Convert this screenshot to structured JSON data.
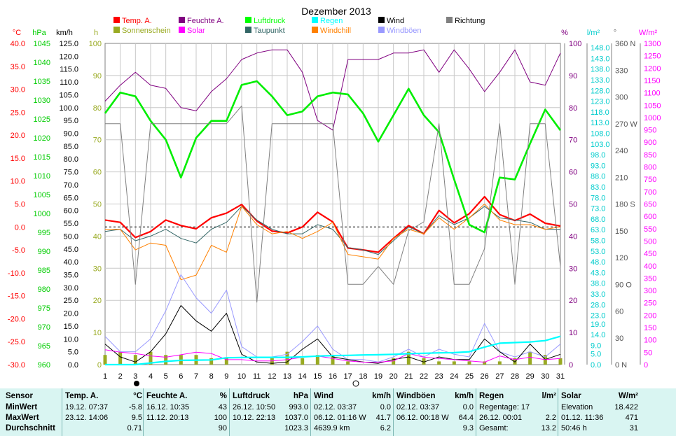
{
  "chart_data": {
    "type": "line",
    "title": "Dezember 2013",
    "x": [
      1,
      2,
      3,
      4,
      5,
      6,
      7,
      8,
      9,
      10,
      11,
      12,
      13,
      14,
      15,
      16,
      17,
      18,
      19,
      20,
      21,
      22,
      23,
      24,
      25,
      26,
      27,
      28,
      29,
      30,
      31
    ],
    "axes": {
      "temp": {
        "unit": "°C",
        "range": [
          -30,
          40
        ],
        "ticks": [
          "40.0",
          "35.0",
          "30.0",
          "25.0",
          "20.0",
          "15.0",
          "10.0",
          "5.0",
          "0.0",
          "-5.0",
          "-10.0",
          "-15.0",
          "-20.0",
          "-25.0",
          "-30.0"
        ],
        "color": "#ff0000"
      },
      "pressure": {
        "unit": "hPa",
        "range": [
          960,
          1045
        ],
        "ticks": [
          "1045",
          "1040",
          "1035",
          "1030",
          "1025",
          "1020",
          "1015",
          "1010",
          "1005",
          "1000",
          "995",
          "990",
          "985",
          "980",
          "975",
          "970",
          "965",
          "960"
        ],
        "color": "#00cc00"
      },
      "wind": {
        "unit": "km/h",
        "range": [
          0,
          125
        ],
        "ticks": [
          "125.0",
          "120.0",
          "115.0",
          "110.0",
          "105.0",
          "100.0",
          "95.0",
          "90.0",
          "85.0",
          "80.0",
          "75.0",
          "70.0",
          "65.0",
          "60.0",
          "55.0",
          "50.0",
          "45.0",
          "40.0",
          "35.0",
          "30.0",
          "25.0",
          "20.0",
          "15.0",
          "10.0",
          "5.0",
          "0.0"
        ],
        "color": "#000000"
      },
      "sunshine": {
        "unit": "h",
        "range": [
          0,
          100
        ],
        "ticks": [
          "100",
          "90",
          "80",
          "70",
          "60",
          "50",
          "40",
          "30",
          "20",
          "10",
          "0"
        ],
        "color": "#99aa22"
      },
      "humidity": {
        "unit": "%",
        "range": [
          0,
          100
        ],
        "ticks": [
          "100",
          "90",
          "80",
          "70",
          "60",
          "50",
          "40",
          "30",
          "20",
          "10",
          "0"
        ],
        "color": "#800080"
      },
      "rain": {
        "unit": "l/m²",
        "range": [
          0,
          150
        ],
        "ticks": [
          "148.0",
          "143.0",
          "138.0",
          "133.0",
          "128.0",
          "123.0",
          "118.0",
          "113.0",
          "108.0",
          "103.0",
          "98.0",
          "93.0",
          "88.0",
          "83.0",
          "78.0",
          "73.0",
          "68.0",
          "63.0",
          "58.0",
          "53.0",
          "48.0",
          "43.0",
          "38.0",
          "33.0",
          "28.0",
          "23.0",
          "19.0",
          "14.0",
          "9.0",
          "5.0",
          "0.0"
        ],
        "color": "#00cccc"
      },
      "direction": {
        "unit": "°",
        "range": [
          0,
          360
        ],
        "ticks": [
          "360 N",
          "330",
          "300",
          "270 W",
          "240",
          "210",
          "180 S",
          "150",
          "120",
          "90 O",
          "60",
          "30",
          "0 N"
        ],
        "color": "#555555"
      },
      "solar": {
        "unit": "W/m²",
        "range": [
          0,
          1300
        ],
        "ticks": [
          "1300",
          "1250",
          "1200",
          "1150",
          "1100",
          "1050",
          "1000",
          "950",
          "900",
          "850",
          "800",
          "750",
          "700",
          "650",
          "600",
          "550",
          "500",
          "450",
          "400",
          "350",
          "300",
          "250",
          "200",
          "150",
          "100",
          "50",
          "0"
        ],
        "color": "#ff00ff"
      }
    },
    "legend": [
      {
        "name": "Temp. A.",
        "color": "#ff0000"
      },
      {
        "name": "Feuchte A.",
        "color": "#800080"
      },
      {
        "name": "Luftdruck",
        "color": "#00ff00"
      },
      {
        "name": "Regen",
        "color": "#00ffff"
      },
      {
        "name": "Wind",
        "color": "#000000"
      },
      {
        "name": "Richtung",
        "color": "#808080"
      },
      {
        "name": "Sonnenschein",
        "color": "#99aa22"
      },
      {
        "name": "Solar",
        "color": "#ff00ff"
      },
      {
        "name": "Taupunkt",
        "color": "#336666"
      },
      {
        "name": "Windchill",
        "color": "#ff8000"
      },
      {
        "name": "Windböen",
        "color": "#9999ff"
      }
    ],
    "series": [
      {
        "name": "Temp. A.",
        "axis": "temp",
        "color": "#ff0000",
        "width": 2.2,
        "values": [
          1.5,
          1.0,
          -2.3,
          -1.0,
          1.5,
          0.3,
          -0.4,
          2.0,
          3.0,
          4.9,
          1.3,
          -0.9,
          -1.3,
          0.0,
          3.2,
          1.1,
          -4.6,
          -5.0,
          -5.5,
          -2.5,
          0.3,
          -1.5,
          3.6,
          0.9,
          2.9,
          6.6,
          2.7,
          1.4,
          2.8,
          0.8,
          0.2
        ]
      },
      {
        "name": "Taupunkt",
        "axis": "temp",
        "color": "#336666",
        "width": 1,
        "values": [
          -1.0,
          -0.5,
          -3.0,
          -2.0,
          -0.5,
          -2.5,
          -3.5,
          -0.5,
          1.0,
          4.5,
          1.5,
          -0.5,
          -1.5,
          -1.5,
          0.5,
          -0.5,
          -4.5,
          -5.0,
          -6.0,
          -3.0,
          0.0,
          -1.5,
          2.5,
          0.5,
          2.0,
          4.5,
          2.0,
          1.5,
          1.0,
          -0.5,
          -0.5
        ]
      },
      {
        "name": "Windchill",
        "axis": "temp",
        "color": "#ff8000",
        "width": 1,
        "values": [
          -0.5,
          -0.5,
          -5.0,
          -3.5,
          -4.0,
          -11.5,
          -10.5,
          -4.0,
          -5.5,
          4.5,
          0.5,
          -1.5,
          -1.0,
          -2.5,
          -1.0,
          1.0,
          -6.0,
          -6.5,
          -7.0,
          -2.5,
          -0.5,
          -1.5,
          2.0,
          -0.5,
          2.0,
          5.0,
          1.5,
          0.5,
          0.5,
          -0.5,
          0.0
        ]
      },
      {
        "name": "Feuchte A.",
        "axis": "humidity",
        "color": "#800080",
        "width": 1,
        "values": [
          82,
          87,
          91,
          87,
          86,
          80,
          79,
          85,
          89,
          95,
          97,
          98,
          98,
          91,
          76,
          73,
          95,
          95,
          95,
          97,
          97,
          98,
          91,
          98,
          92,
          85,
          91,
          98,
          88,
          87,
          97
        ]
      },
      {
        "name": "Luftdruck",
        "axis": "pressure",
        "color": "#00ee00",
        "width": 2.6,
        "values": [
          1026.5,
          1032.0,
          1031.0,
          1024.5,
          1019.5,
          1009.5,
          1020.0,
          1024.5,
          1024.5,
          1034.0,
          1035.0,
          1031.0,
          1026.0,
          1027.0,
          1031.0,
          1032.0,
          1031.5,
          1026.5,
          1019.0,
          1026.0,
          1033.0,
          1026.0,
          1021.5,
          1009.0,
          997.0,
          995.0,
          1009.5,
          1009.0,
          1018.5,
          1027.5,
          1022.0
        ]
      },
      {
        "name": "Richtung",
        "axis": "direction",
        "color": "#808080",
        "width": 1,
        "values": [
          270,
          270,
          90,
          270,
          270,
          270,
          270,
          270,
          270,
          290,
          70,
          270,
          270,
          270,
          270,
          270,
          90,
          90,
          110,
          90,
          150,
          160,
          270,
          90,
          90,
          130,
          270,
          90,
          270,
          270,
          110
        ]
      },
      {
        "name": "Windböen",
        "axis": "wind",
        "color": "#9999ff",
        "width": 1,
        "values": [
          11,
          5,
          5,
          10,
          21,
          35,
          26,
          20,
          29,
          7,
          3,
          3,
          4,
          9,
          15,
          6,
          2,
          2,
          1,
          3,
          6,
          3,
          6,
          4,
          3,
          16,
          5,
          3,
          5,
          3,
          8
        ]
      },
      {
        "name": "Wind",
        "axis": "wind",
        "color": "#000000",
        "width": 1,
        "values": [
          8,
          3,
          1,
          5,
          12,
          23,
          17,
          13,
          20,
          4,
          1,
          0.5,
          1,
          6,
          10,
          3,
          2,
          1,
          0.5,
          2,
          3,
          1,
          3,
          2,
          2,
          10,
          5,
          1,
          8,
          2,
          4
        ]
      },
      {
        "name": "Solar",
        "axis": "solar",
        "color": "#ff00ff",
        "width": 1,
        "values": [
          60,
          50,
          45,
          35,
          30,
          40,
          50,
          45,
          20,
          20,
          15,
          15,
          20,
          30,
          35,
          25,
          15,
          10,
          10,
          15,
          45,
          30,
          25,
          20,
          15,
          10,
          35,
          20,
          30,
          20,
          25
        ]
      },
      {
        "name": "Regen",
        "axis": "rain",
        "color": "#00ffff",
        "width": 2.2,
        "values": [
          0,
          0,
          0,
          0.8,
          1.5,
          2.0,
          2.1,
          2.2,
          3.2,
          3.3,
          3.4,
          3.4,
          3.4,
          3.6,
          4.0,
          4.2,
          4.3,
          4.5,
          4.6,
          4.8,
          5.1,
          5.3,
          5.5,
          5.6,
          6.0,
          8.2,
          10.0,
          10.3,
          10.6,
          11.2,
          13.2
        ]
      }
    ],
    "bars": {
      "name": "Sonnenschein",
      "axis": "sunshine",
      "color": "#99aa22",
      "values": [
        3,
        4,
        3,
        4,
        3,
        3,
        3,
        2,
        2,
        0,
        0,
        2,
        4,
        2,
        3,
        3,
        1,
        0,
        0,
        2,
        4,
        2,
        1,
        1,
        1,
        1,
        1,
        2,
        4,
        3,
        2
      ]
    }
  },
  "table": {
    "columns": [
      {
        "label": "Sensor",
        "unit": ""
      },
      {
        "label": "Temp. A.",
        "unit": "°C"
      },
      {
        "label": "Feuchte A.",
        "unit": "%"
      },
      {
        "label": "Luftdruck",
        "unit": "hPa"
      },
      {
        "label": "Wind",
        "unit": "km/h"
      },
      {
        "label": "Windböen",
        "unit": "km/h"
      },
      {
        "label": "Regen",
        "unit": "l/m²"
      },
      {
        "label": "Solar",
        "unit": "W/m²"
      }
    ],
    "rows": [
      {
        "label": "MinWert",
        "cells": [
          [
            "19.12.  07:37",
            "-5.8"
          ],
          [
            "16.12.  10:35",
            "43"
          ],
          [
            "26.12.  10:50",
            "993.0"
          ],
          [
            "02.12.  03:37",
            "0.0"
          ],
          [
            "02.12.  03:37",
            "0.0"
          ],
          [
            "Regentage: 17",
            ""
          ],
          [
            "Elevation",
            "18.422"
          ]
        ]
      },
      {
        "label": "MaxWert",
        "cells": [
          [
            "23.12.  14:06",
            "9.5"
          ],
          [
            "11.12.  20:13",
            "100"
          ],
          [
            "10.12.  22:13",
            "1037.0"
          ],
          [
            "06.12.  01:16  W",
            "41.7"
          ],
          [
            "06.12.  00:18  W",
            "64.4"
          ],
          [
            "26.12.  00:01",
            "2.2"
          ],
          [
            "01.12.  11:36",
            "471"
          ]
        ]
      },
      {
        "label": "Durchschnitt",
        "cells": [
          [
            "",
            "0.71"
          ],
          [
            "",
            "90"
          ],
          [
            "",
            "1023.3"
          ],
          [
            "4639.9 km",
            "6.2"
          ],
          [
            "",
            "9.3"
          ],
          [
            "Gesamt:",
            "13.2"
          ],
          [
            "50:46 h",
            "31"
          ]
        ]
      }
    ]
  }
}
